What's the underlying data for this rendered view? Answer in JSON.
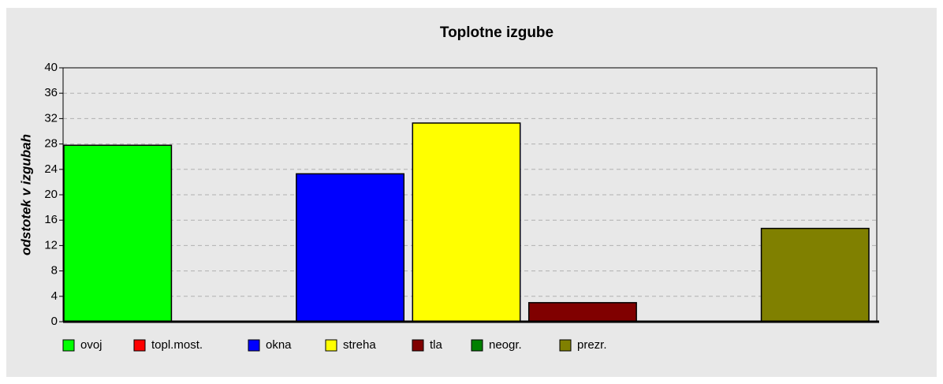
{
  "chart_data": {
    "type": "bar",
    "title": "Toplotne izgube",
    "y_label": "odstotek v izgubah",
    "categories": [
      "ovoj",
      "topl.most.",
      "okna",
      "streha",
      "tla",
      "neogr.",
      "prezr."
    ],
    "values": [
      27.8,
      0,
      23.3,
      31.3,
      3.0,
      0,
      14.7
    ],
    "colors": [
      "#00ff00",
      "#ff0000",
      "#0000ff",
      "#ffff00",
      "#800000",
      "#008000",
      "#808000"
    ],
    "ylim": [
      0,
      40
    ],
    "yticks": [
      0,
      4,
      8,
      12,
      16,
      20,
      24,
      28,
      32,
      36,
      40
    ],
    "grid": true,
    "legend": "bottom"
  }
}
